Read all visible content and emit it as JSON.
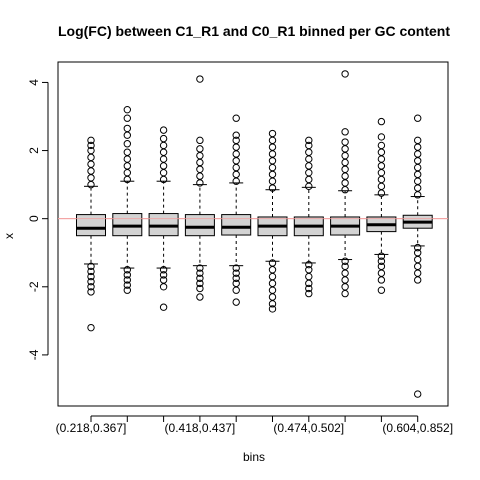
{
  "chart_data": {
    "type": "boxplot",
    "title": "Log(FC) between C1_R1 and C0_R1 binned per GC content",
    "xlabel": "bins",
    "ylabel": "x",
    "ylim": [
      -5.5,
      4.6
    ],
    "yticks": [
      -4,
      -2,
      0,
      2,
      4
    ],
    "reference_line": {
      "y": 0,
      "color": "#f4a0a0"
    },
    "box_fill": "#d3d3d3",
    "categories": [
      "(0.218,0.367]",
      "",
      "",
      "(0.418,0.437]",
      "",
      "",
      "(0.474,0.502]",
      "",
      "",
      "(0.604,0.852]"
    ],
    "boxes": [
      {
        "q1": -0.5,
        "median": -0.28,
        "q3": 0.12,
        "wlo": -1.33,
        "whi": 0.95,
        "hi_out": [
          1.0,
          1.2,
          1.4,
          1.6,
          1.8,
          2.0,
          2.15,
          2.3
        ],
        "lo_out": [
          -1.4,
          -1.55,
          -1.7,
          -1.85,
          -2.0,
          -2.15,
          -3.2
        ]
      },
      {
        "q1": -0.5,
        "median": -0.22,
        "q3": 0.15,
        "wlo": -1.45,
        "whi": 1.1,
        "hi_out": [
          1.15,
          1.35,
          1.55,
          1.75,
          1.95,
          2.2,
          2.45,
          2.65,
          2.95,
          3.2
        ],
        "lo_out": [
          -1.5,
          -1.65,
          -1.8,
          -1.95,
          -2.1
        ]
      },
      {
        "q1": -0.5,
        "median": -0.22,
        "q3": 0.15,
        "wlo": -1.45,
        "whi": 1.1,
        "hi_out": [
          1.15,
          1.35,
          1.55,
          1.75,
          1.95,
          2.15,
          2.35,
          2.6
        ],
        "lo_out": [
          -1.5,
          -1.65,
          -1.8,
          -2.0,
          -2.6
        ]
      },
      {
        "q1": -0.5,
        "median": -0.25,
        "q3": 0.12,
        "wlo": -1.38,
        "whi": 1.0,
        "hi_out": [
          1.05,
          1.25,
          1.45,
          1.65,
          1.85,
          2.05,
          2.3,
          4.1
        ],
        "lo_out": [
          -1.45,
          -1.6,
          -1.75,
          -1.9,
          -2.05,
          -2.3
        ]
      },
      {
        "q1": -0.48,
        "median": -0.25,
        "q3": 0.12,
        "wlo": -1.38,
        "whi": 1.05,
        "hi_out": [
          1.1,
          1.3,
          1.5,
          1.7,
          1.9,
          2.1,
          2.3,
          2.45,
          2.95
        ],
        "lo_out": [
          -1.45,
          -1.6,
          -1.75,
          -1.9,
          -2.1,
          -2.45
        ]
      },
      {
        "q1": -0.5,
        "median": -0.22,
        "q3": 0.05,
        "wlo": -1.25,
        "whi": 0.85,
        "hi_out": [
          0.9,
          1.1,
          1.3,
          1.5,
          1.7,
          1.9,
          2.1,
          2.3,
          2.5
        ],
        "lo_out": [
          -1.3,
          -1.5,
          -1.7,
          -1.9,
          -2.1,
          -2.3,
          -2.5,
          -2.65
        ]
      },
      {
        "q1": -0.5,
        "median": -0.22,
        "q3": 0.05,
        "wlo": -1.3,
        "whi": 0.92,
        "hi_out": [
          0.95,
          1.15,
          1.35,
          1.55,
          1.75,
          1.95,
          2.15,
          2.3
        ],
        "lo_out": [
          -1.35,
          -1.5,
          -1.7,
          -1.9,
          -2.05,
          -2.2
        ]
      },
      {
        "q1": -0.48,
        "median": -0.22,
        "q3": 0.05,
        "wlo": -1.2,
        "whi": 0.82,
        "hi_out": [
          0.85,
          1.05,
          1.25,
          1.45,
          1.65,
          1.85,
          2.05,
          2.25,
          2.55,
          4.25
        ],
        "lo_out": [
          -1.25,
          -1.4,
          -1.6,
          -1.8,
          -2.0,
          -2.2
        ]
      },
      {
        "q1": -0.38,
        "median": -0.18,
        "q3": 0.05,
        "wlo": -1.05,
        "whi": 0.7,
        "hi_out": [
          0.75,
          0.95,
          1.15,
          1.35,
          1.55,
          1.75,
          1.95,
          2.15,
          2.4,
          2.85
        ],
        "lo_out": [
          -1.1,
          -1.25,
          -1.4,
          -1.6,
          -1.8,
          -2.1
        ]
      },
      {
        "q1": -0.28,
        "median": -0.1,
        "q3": 0.1,
        "wlo": -0.8,
        "whi": 0.65,
        "hi_out": [
          0.7,
          0.9,
          1.1,
          1.3,
          1.5,
          1.7,
          1.9,
          2.1,
          2.3,
          2.95
        ],
        "lo_out": [
          -0.85,
          -1.0,
          -1.2,
          -1.4,
          -1.6,
          -1.8,
          -5.15
        ]
      }
    ]
  }
}
